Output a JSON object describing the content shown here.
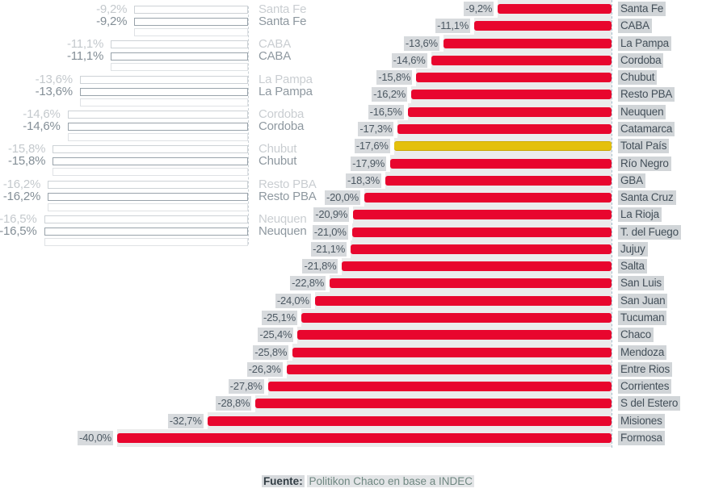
{
  "chart_data": {
    "type": "bar",
    "orientation": "horizontal-right-anchored",
    "title": "",
    "unit": "%",
    "grid": false,
    "legend": false,
    "xlim": [
      -40,
      0
    ],
    "bar_color": "#e8062e",
    "highlight_bar_color": "#e4c00c",
    "highlight_category": "Total País",
    "rows": [
      {
        "name": "Santa Fe",
        "label": "-9,2%",
        "value": -9.2
      },
      {
        "name": "CABA",
        "label": "-11,1%",
        "value": -11.1
      },
      {
        "name": "La Pampa",
        "label": "-13,6%",
        "value": -13.6
      },
      {
        "name": "Cordoba",
        "label": "-14,6%",
        "value": -14.6
      },
      {
        "name": "Chubut",
        "label": "-15,8%",
        "value": -15.8
      },
      {
        "name": "Resto PBA",
        "label": "-16,2%",
        "value": -16.2
      },
      {
        "name": "Neuquen",
        "label": "-16,5%",
        "value": -16.5
      },
      {
        "name": "Catamarca",
        "label": "-17,3%",
        "value": -17.3
      },
      {
        "name": "Total País",
        "label": "-17,6%",
        "value": -17.6,
        "highlight": true
      },
      {
        "name": "Río Negro",
        "label": "-17,9%",
        "value": -17.9
      },
      {
        "name": "GBA",
        "label": "-18,3%",
        "value": -18.3
      },
      {
        "name": "Santa Cruz",
        "label": "-20,0%",
        "value": -20.0
      },
      {
        "name": "La Rioja",
        "label": "-20,9%",
        "value": -20.9
      },
      {
        "name": "T. del Fuego",
        "label": "-21,0%",
        "value": -21.0
      },
      {
        "name": "Jujuy",
        "label": "-21,1%",
        "value": -21.1
      },
      {
        "name": "Salta",
        "label": "-21,8%",
        "value": -21.8
      },
      {
        "name": "San Luis",
        "label": "-22,8%",
        "value": -22.8
      },
      {
        "name": "San Juan",
        "label": "-24,0%",
        "value": -24.0
      },
      {
        "name": "Tucuman",
        "label": "-25,1%",
        "value": -25.1
      },
      {
        "name": "Chaco",
        "label": "-25,4%",
        "value": -25.4
      },
      {
        "name": "Mendoza",
        "label": "-25,8%",
        "value": -25.8
      },
      {
        "name": "Entre Rios",
        "label": "-26,3%",
        "value": -26.3
      },
      {
        "name": "Corrientes",
        "label": "-27,8%",
        "value": -27.8
      },
      {
        "name": "S del Estero",
        "label": "-28,8%",
        "value": -28.8
      },
      {
        "name": "Misiones",
        "label": "-32,7%",
        "value": -32.7
      },
      {
        "name": "Formosa",
        "label": "-40,0%",
        "value": -40.0
      }
    ],
    "ghost_rows": [
      {
        "name": "Santa Fe",
        "label": "-9,2%",
        "value": -9.2
      },
      {
        "name": "CABA",
        "label": "-11,1%",
        "value": -11.1
      },
      {
        "name": "La Pampa",
        "label": "-13,6%",
        "value": -13.6
      },
      {
        "name": "Cordoba",
        "label": "-14,6%",
        "value": -14.6
      },
      {
        "name": "Chubut",
        "label": "-15,8%",
        "value": -15.8
      },
      {
        "name": "Resto PBA",
        "label": "-16,2%",
        "value": -16.2
      },
      {
        "name": "Neuquen",
        "label": "-16,5%",
        "value": -16.5
      }
    ],
    "source": {
      "prefix": "Fuente:",
      "text": "Politikon Chaco en base a INDEC"
    }
  }
}
